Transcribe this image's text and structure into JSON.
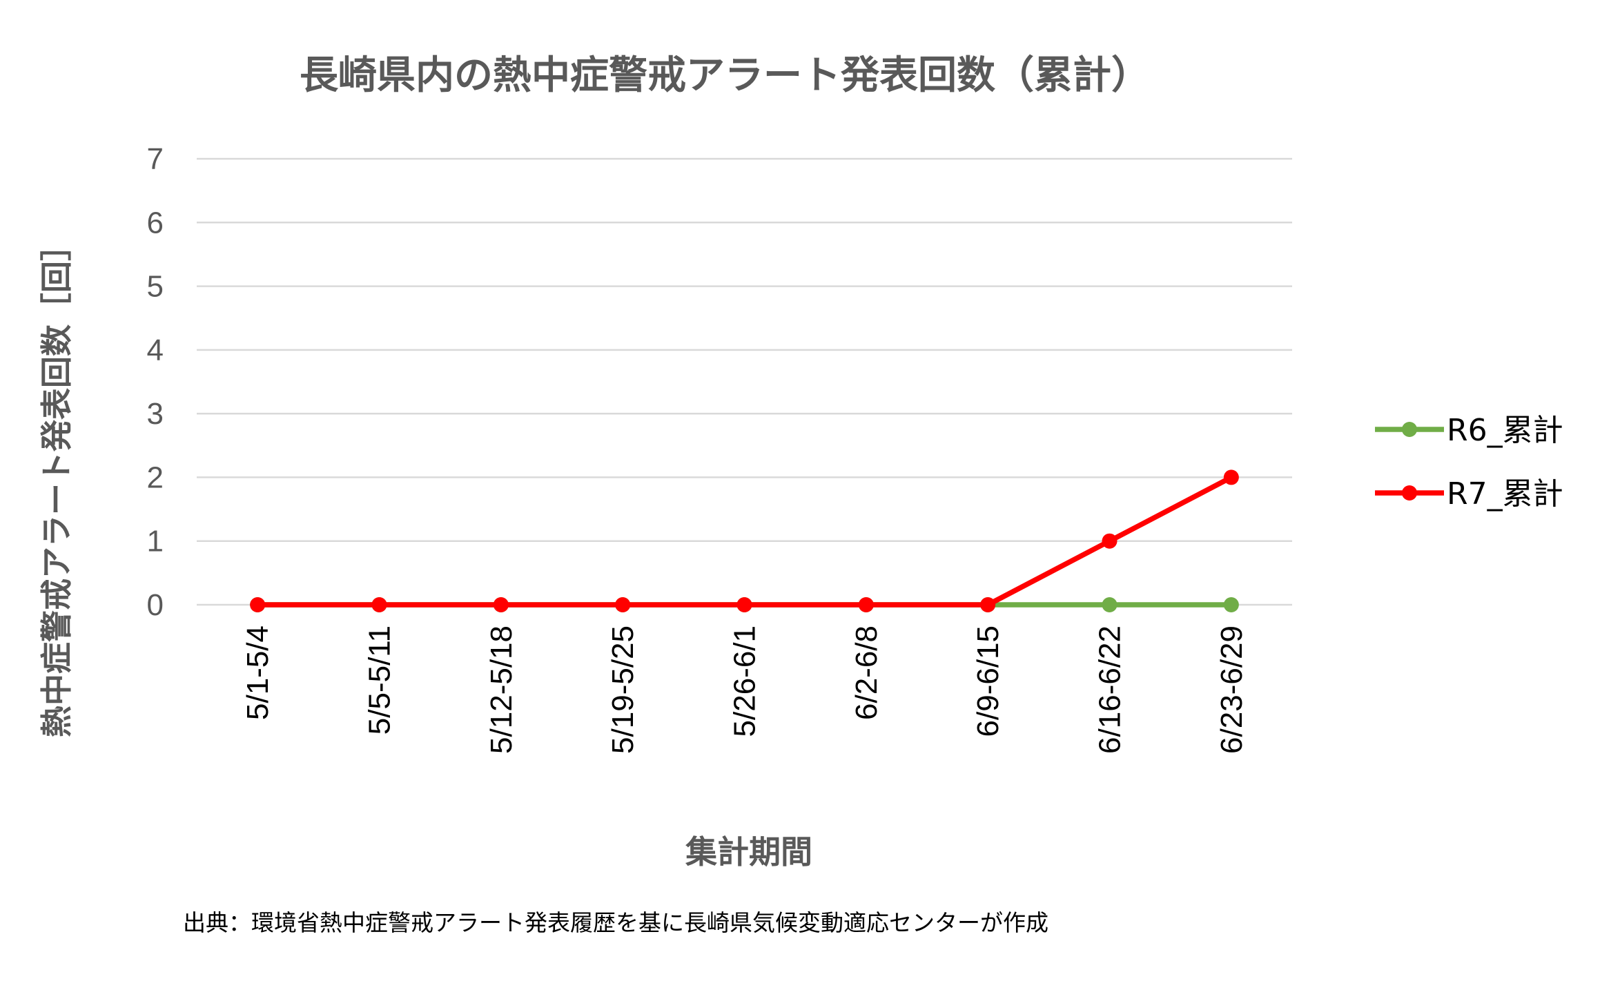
{
  "chart_data": {
    "type": "line",
    "title": "長崎県内の熱中症警戒アラート発表回数（累計）",
    "xlabel": "集計期間",
    "ylabel": "熱中症警戒アラート発表回数［回］",
    "categories": [
      "5/1-5/4",
      "5/5-5/11",
      "5/12-5/18",
      "5/19-5/25",
      "5/26-6/1",
      "6/2-6/8",
      "6/9-6/15",
      "6/16-6/22",
      "6/23-6/29"
    ],
    "ylim": [
      0,
      7
    ],
    "yticks": [
      "0",
      "1",
      "2",
      "3",
      "4",
      "5",
      "6",
      "7"
    ],
    "grid": true,
    "legend_position": "right",
    "series": [
      {
        "name": "R6_累計",
        "color": "#70ad47",
        "values": [
          0,
          0,
          0,
          0,
          0,
          0,
          0,
          0,
          0
        ]
      },
      {
        "name": "R7_累計",
        "color": "#ff0000",
        "values": [
          0,
          0,
          0,
          0,
          0,
          0,
          0,
          1,
          2
        ]
      }
    ],
    "source": "出典：環境省熱中症警戒アラート発表履歴を基に長崎県気候変動適応センターが作成"
  }
}
